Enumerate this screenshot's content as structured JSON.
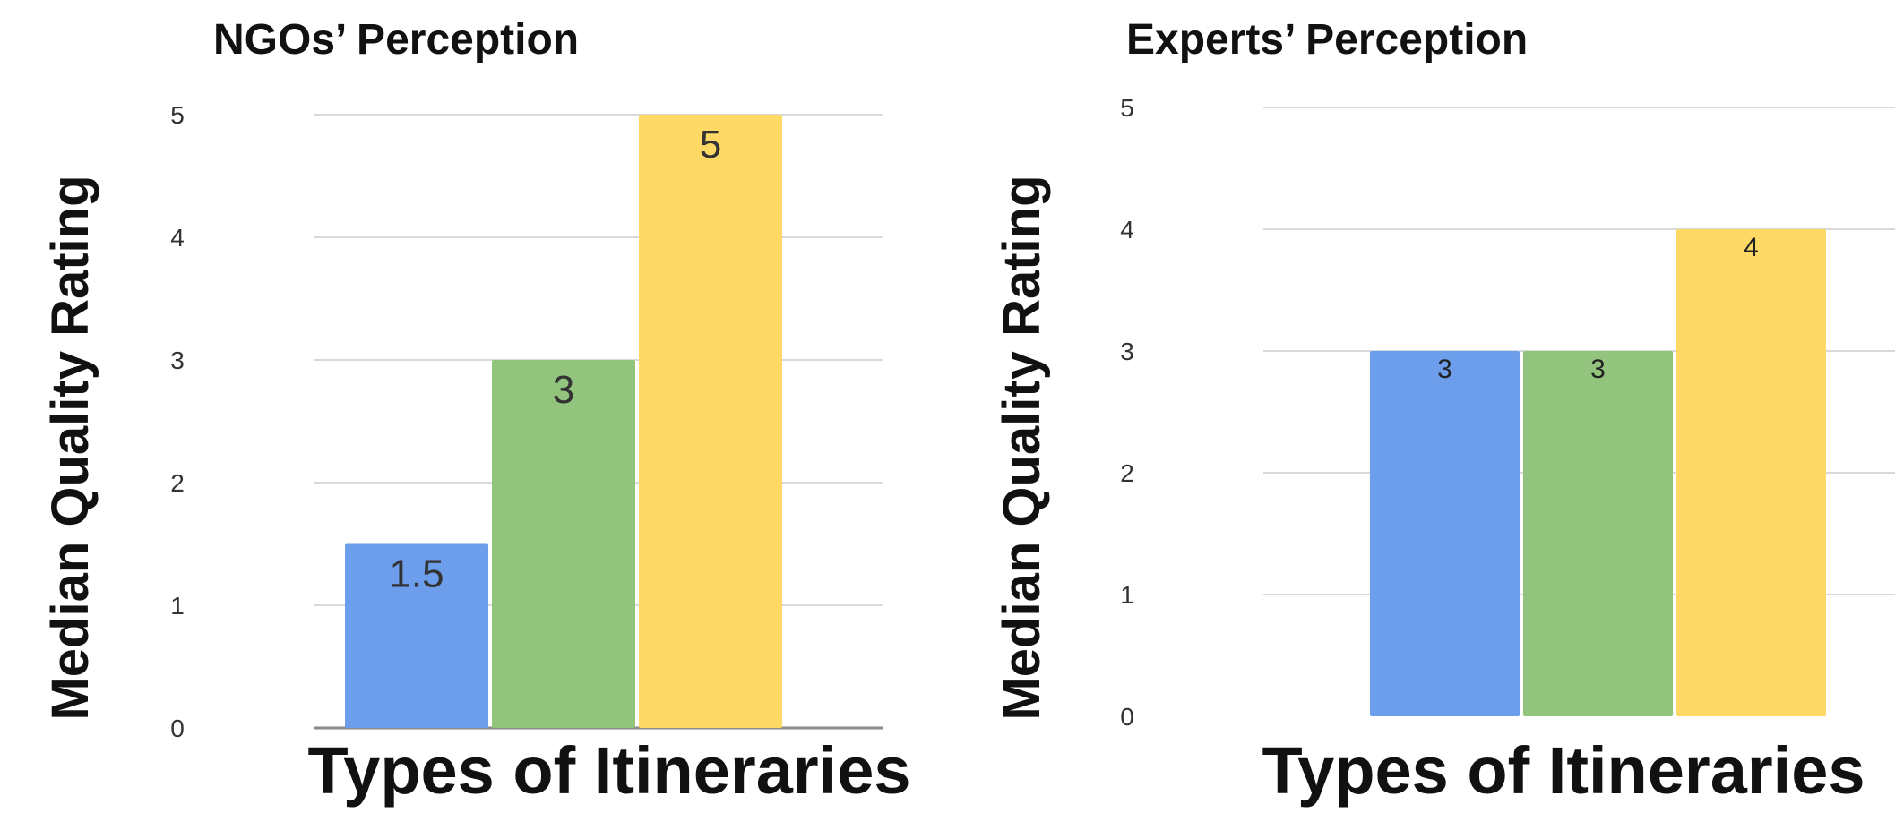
{
  "chart_data": [
    {
      "type": "bar",
      "title": "NGOs’ Perception",
      "xlabel": "Types of Itineraries",
      "ylabel": "Median Quality Rating",
      "ylim": [
        0,
        5
      ],
      "yticks": [
        "0",
        "1",
        "2",
        "3",
        "4",
        "5"
      ],
      "grid": true,
      "legend": "none",
      "series": [
        {
          "values": [
            1.5,
            3,
            5
          ],
          "labels": [
            "1.5",
            "3",
            "5"
          ],
          "colors": [
            "#6d9eeb",
            "#93c47d",
            "#ffd966"
          ]
        }
      ]
    },
    {
      "type": "bar",
      "title": "Experts’ Perception",
      "xlabel": "Types of Itineraries",
      "ylabel": "Median Quality Rating",
      "ylim": [
        0,
        5
      ],
      "yticks": [
        "0",
        "1",
        "2",
        "3",
        "4",
        "5"
      ],
      "grid": true,
      "legend": "none",
      "series": [
        {
          "values": [
            3,
            3,
            4
          ],
          "labels": [
            "3",
            "3",
            "4"
          ],
          "colors": [
            "#6d9eeb",
            "#93c47d",
            "#ffd966"
          ]
        }
      ]
    }
  ]
}
